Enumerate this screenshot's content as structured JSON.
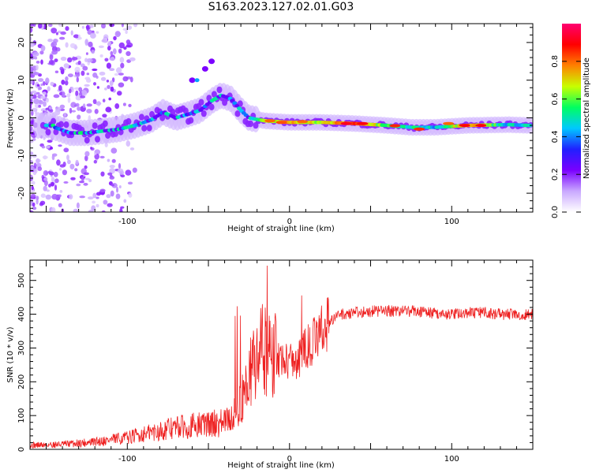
{
  "title": "S163.2023.127.02.01.G03",
  "chart_data": [
    {
      "type": "heatmap",
      "xlabel": "Height of straight line (km)",
      "ylabel": "Frequency (Hz)",
      "xlim": [
        -160,
        150
      ],
      "ylim": [
        -25,
        25
      ],
      "xticks": [
        -100,
        0,
        100
      ],
      "yticks": [
        -20,
        -10,
        0,
        10,
        20
      ],
      "colorbar": {
        "label": "Normalized spectral amplitude",
        "ticks": [
          "0.0",
          "0.2",
          "0.4",
          "0.6",
          "0.8"
        ],
        "range": [
          0,
          1
        ],
        "colors": [
          "#ffffff",
          "#c9a8ff",
          "#7a00ff",
          "#2020ff",
          "#00c8ff",
          "#00ff60",
          "#c8ff00",
          "#ff8000",
          "#ff0000",
          "#ff0070"
        ]
      },
      "trace": [
        {
          "x": -145,
          "y": -2.5,
          "amp": 0.4
        },
        {
          "x": -135,
          "y": -4,
          "amp": 0.5
        },
        {
          "x": -125,
          "y": -4,
          "amp": 0.5
        },
        {
          "x": -115,
          "y": -3.5,
          "amp": 0.45
        },
        {
          "x": -105,
          "y": -3,
          "amp": 0.5
        },
        {
          "x": -95,
          "y": -2,
          "amp": 0.45
        },
        {
          "x": -85,
          "y": -0.5,
          "amp": 0.45
        },
        {
          "x": -78,
          "y": 1.5,
          "amp": 0.45
        },
        {
          "x": -70,
          "y": 0,
          "amp": 0.45
        },
        {
          "x": -62,
          "y": 1,
          "amp": 0.4
        },
        {
          "x": -55,
          "y": 2,
          "amp": 0.4
        },
        {
          "x": -48,
          "y": 4.5,
          "amp": 0.45
        },
        {
          "x": -42,
          "y": 6,
          "amp": 0.5
        },
        {
          "x": -36,
          "y": 5,
          "amp": 0.45
        },
        {
          "x": -30,
          "y": 2,
          "amp": 0.45
        },
        {
          "x": -25,
          "y": 0,
          "amp": 0.45
        },
        {
          "x": -15,
          "y": -0.8,
          "amp": 0.6
        },
        {
          "x": 0,
          "y": -1.2,
          "amp": 0.75
        },
        {
          "x": 20,
          "y": -1.2,
          "amp": 0.65
        },
        {
          "x": 40,
          "y": -1.5,
          "amp": 0.85
        },
        {
          "x": 60,
          "y": -2,
          "amp": 0.55
        },
        {
          "x": 75,
          "y": -2.5,
          "amp": 0.5
        },
        {
          "x": 90,
          "y": -2.5,
          "amp": 0.45
        },
        {
          "x": 110,
          "y": -2,
          "amp": 0.8
        },
        {
          "x": 135,
          "y": -1.8,
          "amp": 0.45
        },
        {
          "x": 148,
          "y": -2,
          "amp": 0.5
        }
      ],
      "side_branch": [
        {
          "x": -60,
          "y": 10
        },
        {
          "x": -52,
          "y": 13
        },
        {
          "x": -48,
          "y": 15
        }
      ]
    },
    {
      "type": "line",
      "xlabel": "Height of straight line (km)",
      "ylabel": "SNR (10 * v/v)",
      "xlim": [
        -160,
        150
      ],
      "ylim": [
        0,
        560
      ],
      "xticks": [
        -100,
        0,
        100
      ],
      "yticks": [
        0,
        100,
        200,
        300,
        400,
        500
      ],
      "series": [
        {
          "color": "#ee2020",
          "x": [
            -160,
            -140,
            -120,
            -100,
            -90,
            -80,
            -70,
            -60,
            -50,
            -40,
            -35,
            -30,
            -25,
            -20,
            -15,
            -12,
            -10,
            -5,
            0,
            5,
            10,
            15,
            20,
            25,
            30,
            40,
            50,
            60,
            70,
            80,
            90,
            100,
            110,
            120,
            130,
            140,
            150
          ],
          "values": [
            12,
            15,
            22,
            35,
            45,
            55,
            65,
            70,
            75,
            80,
            95,
            140,
            210,
            280,
            310,
            200,
            270,
            270,
            265,
            260,
            300,
            320,
            355,
            380,
            398,
            405,
            408,
            410,
            410,
            408,
            402,
            400,
            404,
            405,
            400,
            398,
            400
          ]
        }
      ]
    }
  ]
}
